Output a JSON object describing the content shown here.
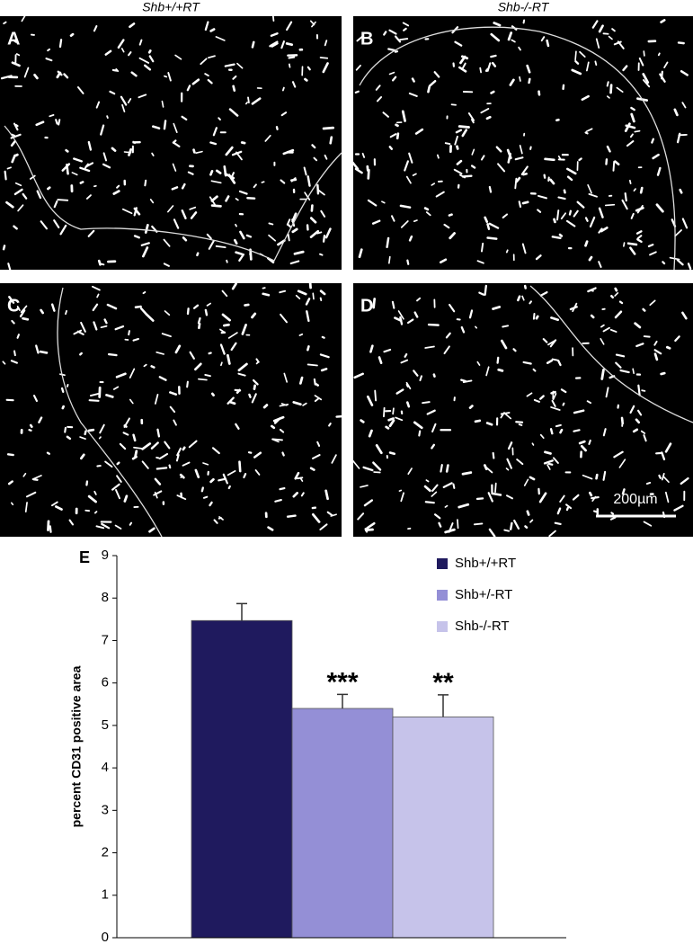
{
  "panels": [
    {
      "label": "A",
      "column_header": "Shb+/+RT"
    },
    {
      "label": "B",
      "column_header": "Shb-/-RT"
    },
    {
      "label": "C"
    },
    {
      "label": "D",
      "scale_bar": "200µm"
    }
  ],
  "chart_data": {
    "type": "bar",
    "panel_label": "E",
    "y_label": "percent CD31 positive area",
    "categories": [
      null
    ],
    "series": [
      {
        "name": "Shb+/+RT",
        "color": "#1f1a5e",
        "values": [
          7.47
        ],
        "errors": [
          0.4
        ]
      },
      {
        "name": "Shb+/-RT",
        "color": "#948fd6",
        "values": [
          5.4
        ],
        "errors": [
          0.33
        ],
        "annotation": "***"
      },
      {
        "name": "Shb-/-RT",
        "color": "#c6c3ea",
        "values": [
          5.2
        ],
        "errors": [
          0.52
        ],
        "annotation": "**"
      }
    ],
    "ylim": [
      0,
      9
    ],
    "yticks": [
      0,
      1,
      2,
      3,
      4,
      5,
      6,
      7,
      8,
      9
    ],
    "grid": false,
    "legend": "top-right"
  }
}
